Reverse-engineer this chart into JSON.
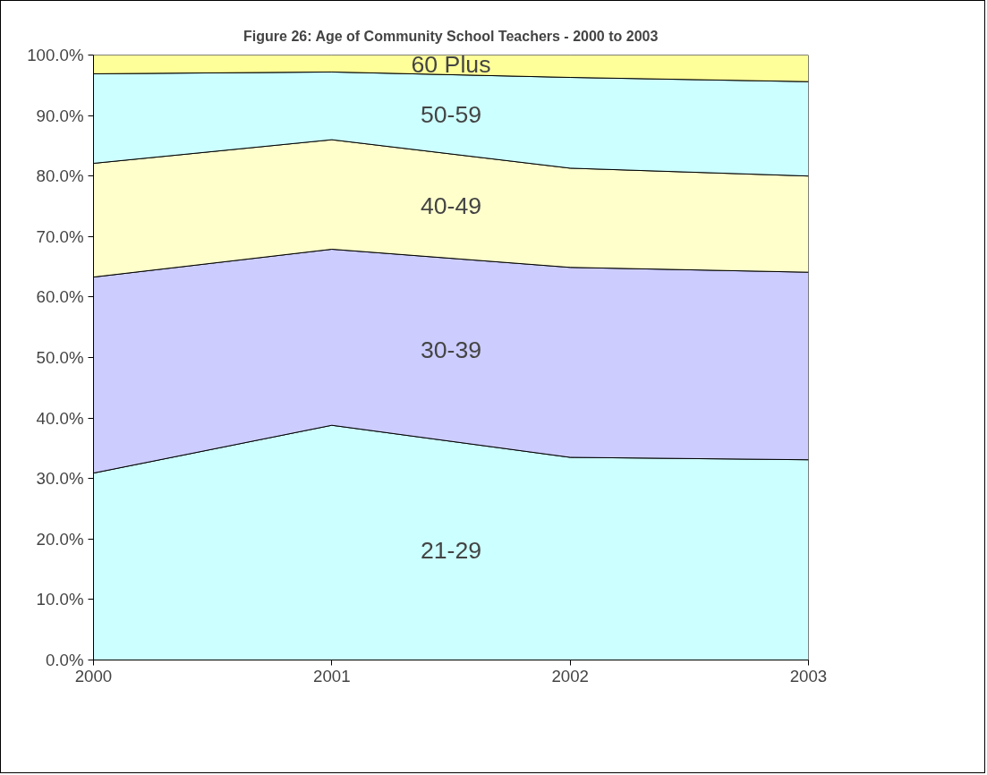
{
  "chart_data": {
    "type": "area",
    "title": "Figure 26: Age of Community School Teachers - 2000 to 2003",
    "stacked": true,
    "x": [
      2000,
      2001,
      2002,
      2003
    ],
    "series": [
      {
        "name": "21-29",
        "color": "#ccffff",
        "values": [
          30.9,
          38.8,
          33.5,
          33.1
        ]
      },
      {
        "name": "30-39",
        "color": "#ccccff",
        "values": [
          32.4,
          29.1,
          31.4,
          31.0
        ]
      },
      {
        "name": "40-49",
        "color": "#ffffcc",
        "values": [
          18.8,
          18.1,
          16.4,
          15.9
        ]
      },
      {
        "name": "50-59",
        "color": "#ccffff",
        "values": [
          14.8,
          11.2,
          15.0,
          15.6
        ]
      },
      {
        "name": "60 Plus",
        "color": "#ffff99",
        "values": [
          3.1,
          2.8,
          3.7,
          4.4
        ]
      }
    ],
    "xlim": [
      2000,
      2003
    ],
    "xticks": [
      2000,
      2001,
      2002,
      2003
    ],
    "ylim": [
      0,
      100
    ],
    "yticks": [
      {
        "value": 0,
        "label": "0.0%"
      },
      {
        "value": 10,
        "label": "10.0%"
      },
      {
        "value": 20,
        "label": "20.0%"
      },
      {
        "value": 30,
        "label": "30.0%"
      },
      {
        "value": 40,
        "label": "40.0%"
      },
      {
        "value": 50,
        "label": "50.0%"
      },
      {
        "value": 60,
        "label": "60.0%"
      },
      {
        "value": 70,
        "label": "70.0%"
      },
      {
        "value": 80,
        "label": "80.0%"
      },
      {
        "value": 90,
        "label": "90.0%"
      },
      {
        "value": 100,
        "label": "100.0%"
      }
    ]
  }
}
